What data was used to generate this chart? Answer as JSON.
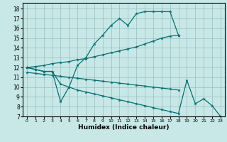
{
  "xlabel": "Humidex (Indice chaleur)",
  "bg_color": "#c8e8e8",
  "line_color": "#007070",
  "xlim": [
    -0.5,
    23.5
  ],
  "ylim": [
    7,
    18.6
  ],
  "xticks": [
    0,
    1,
    2,
    3,
    4,
    5,
    6,
    7,
    8,
    9,
    10,
    11,
    12,
    13,
    14,
    15,
    16,
    17,
    18,
    19,
    20,
    21,
    22,
    23
  ],
  "yticks": [
    7,
    8,
    9,
    10,
    11,
    12,
    13,
    14,
    15,
    16,
    17,
    18
  ],
  "line1_x": [
    0,
    1,
    2,
    3,
    4,
    5,
    6,
    7,
    8,
    9,
    10,
    11,
    12,
    13,
    14,
    15,
    16,
    17,
    18
  ],
  "line1_y": [
    12.0,
    11.8,
    11.6,
    11.6,
    10.3,
    10.0,
    12.2,
    13.0,
    14.4,
    15.3,
    16.3,
    17.0,
    16.3,
    17.5,
    17.7,
    17.7,
    17.7,
    17.7,
    15.3
  ],
  "line2_x": [
    0,
    1,
    2,
    3,
    4,
    5,
    6,
    7,
    8,
    9,
    10,
    11,
    12,
    13,
    14,
    15,
    16,
    17,
    18
  ],
  "line2_y": [
    12.0,
    12.1,
    12.2,
    12.4,
    12.5,
    12.6,
    12.8,
    12.9,
    13.1,
    13.3,
    13.5,
    13.7,
    13.9,
    14.1,
    14.4,
    14.7,
    15.0,
    15.2,
    15.3
  ],
  "line3_x": [
    0,
    1,
    2,
    3,
    4,
    5,
    6,
    7,
    8,
    9,
    10,
    11,
    12,
    13,
    14,
    15,
    16,
    17,
    18,
    19,
    20,
    21,
    22,
    23
  ],
  "line3_y": [
    12.0,
    11.8,
    11.6,
    11.6,
    8.5,
    10.0,
    9.7,
    9.5,
    9.3,
    9.1,
    8.9,
    8.7,
    8.5,
    8.3,
    8.1,
    7.9,
    7.7,
    7.5,
    7.3,
    10.7,
    8.3,
    8.8,
    8.1,
    7.0
  ],
  "line4_x": [
    0,
    1,
    2,
    3,
    4,
    5,
    6,
    7,
    8,
    9,
    10,
    11,
    12,
    13,
    14,
    15,
    16,
    17,
    18
  ],
  "line4_y": [
    11.5,
    11.4,
    11.3,
    11.2,
    11.1,
    11.0,
    10.9,
    10.8,
    10.7,
    10.6,
    10.5,
    10.4,
    10.3,
    10.2,
    10.1,
    10.0,
    9.9,
    9.8,
    9.7
  ]
}
